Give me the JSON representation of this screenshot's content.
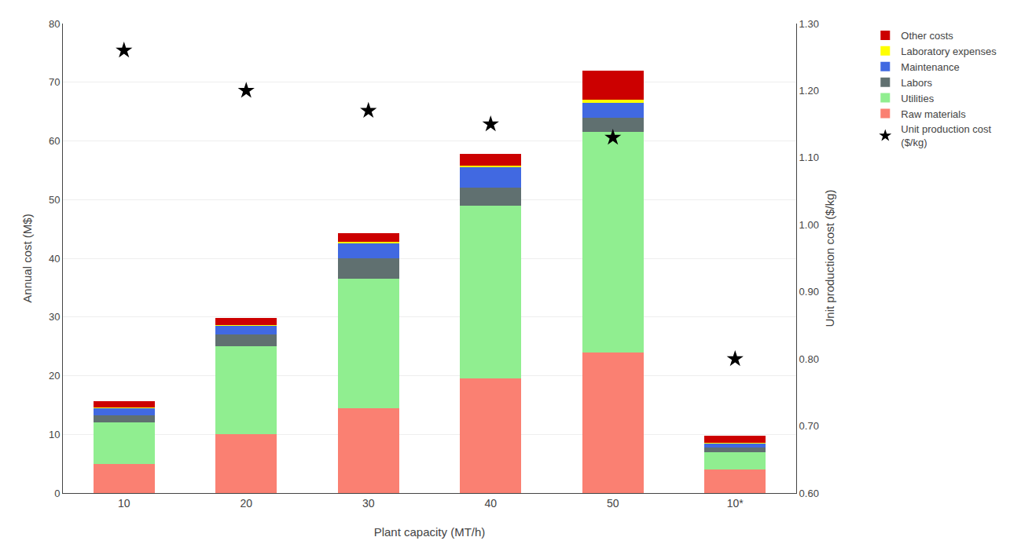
{
  "chart_data": {
    "type": "bar",
    "stacked": true,
    "xlabel": "Plant capacity (MT/h)",
    "ylabel": "Annual cost (M$)",
    "y2label": "Unit production cost ($/kg)",
    "categories": [
      "10",
      "20",
      "30",
      "40",
      "50",
      "10*"
    ],
    "series": [
      {
        "name": "Raw materials",
        "color": "#FA8072",
        "values": [
          5.0,
          10.0,
          14.5,
          19.5,
          24.0,
          4.0
        ]
      },
      {
        "name": "Utilities",
        "color": "#90EE90",
        "values": [
          7.0,
          15.0,
          22.0,
          29.5,
          37.5,
          3.0
        ]
      },
      {
        "name": "Labors",
        "color": "#607070",
        "values": [
          1.2,
          2.0,
          3.5,
          3.0,
          2.5,
          0.7
        ]
      },
      {
        "name": "Maintenance",
        "color": "#4169E1",
        "values": [
          1.3,
          1.5,
          2.5,
          3.5,
          2.5,
          0.8
        ]
      },
      {
        "name": "Laboratory expenses",
        "color": "#FFFF00",
        "values": [
          0.1,
          0.1,
          0.3,
          0.3,
          0.5,
          0.1
        ]
      },
      {
        "name": "Other costs",
        "color": "#CC0000",
        "values": [
          1.0,
          1.3,
          1.5,
          2.0,
          5.0,
          1.2
        ]
      },
      {
        "name": "Unit production cost\n($/kg)",
        "type": "scatter",
        "marker": "star",
        "color": "#000000",
        "axis": "y2",
        "values": [
          1.26,
          1.2,
          1.17,
          1.15,
          1.13,
          0.8
        ]
      }
    ],
    "ylim": [
      0,
      80
    ],
    "yticks": [
      0,
      10,
      20,
      30,
      40,
      50,
      60,
      70,
      80
    ],
    "y2lim": [
      0.6,
      1.3
    ],
    "y2ticks": [
      {
        "value": 0.6,
        "label": "0.60"
      },
      {
        "value": 0.7,
        "label": "0.70"
      },
      {
        "value": 0.8,
        "label": "0.80"
      },
      {
        "value": 0.9,
        "label": "0.90"
      },
      {
        "value": 1.0,
        "label": "1.00"
      },
      {
        "value": 1.1,
        "label": "1.10"
      },
      {
        "value": 1.2,
        "label": "1.20"
      },
      {
        "value": 1.3,
        "label": "1.30"
      }
    ],
    "grid": true,
    "legend": "right"
  }
}
